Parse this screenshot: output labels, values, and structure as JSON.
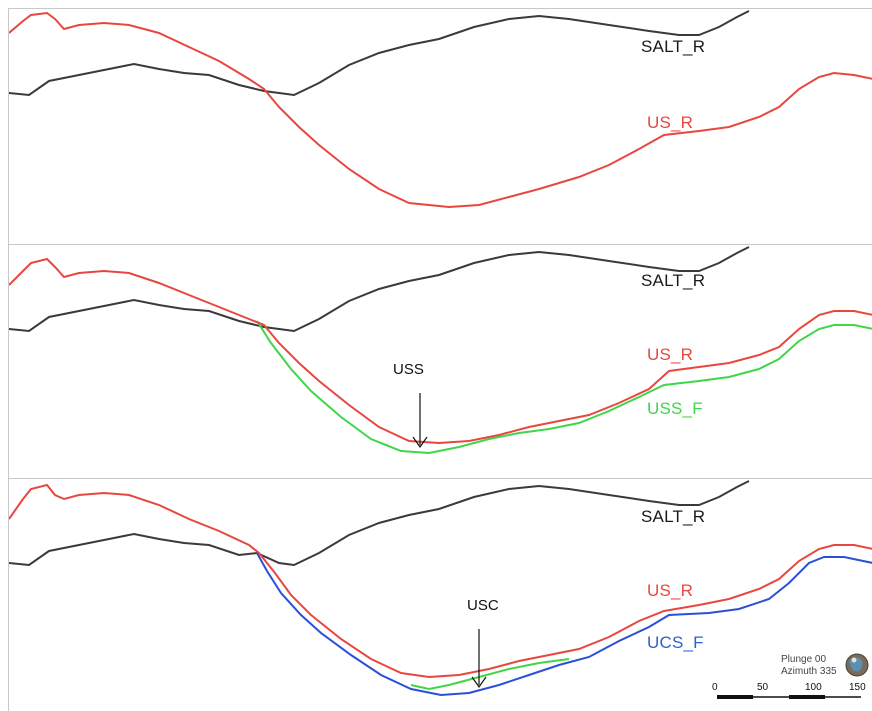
{
  "panels": [
    {
      "id": "top",
      "labels": {
        "salt": "SALT_R",
        "us": "US_R"
      }
    },
    {
      "id": "middle",
      "labels": {
        "salt": "SALT_R",
        "us": "US_R",
        "fault": "USS_F"
      },
      "annotation": "USS"
    },
    {
      "id": "bottom",
      "labels": {
        "salt": "SALT_R",
        "us": "US_R",
        "fault": "UCS_F"
      },
      "annotation": "USC"
    }
  ],
  "orientation": {
    "plunge": "Plunge 00",
    "azimuth": "Azimuth 335"
  },
  "scale_bar": {
    "ticks": [
      "0",
      "50",
      "100",
      "150"
    ]
  },
  "colors": {
    "salt": "#3a3a3a",
    "us": "#e8473f",
    "uss_fault": "#3fd64a",
    "ucs_fault": "#2b4fd8",
    "usc_patch": "#3fd64a"
  }
}
